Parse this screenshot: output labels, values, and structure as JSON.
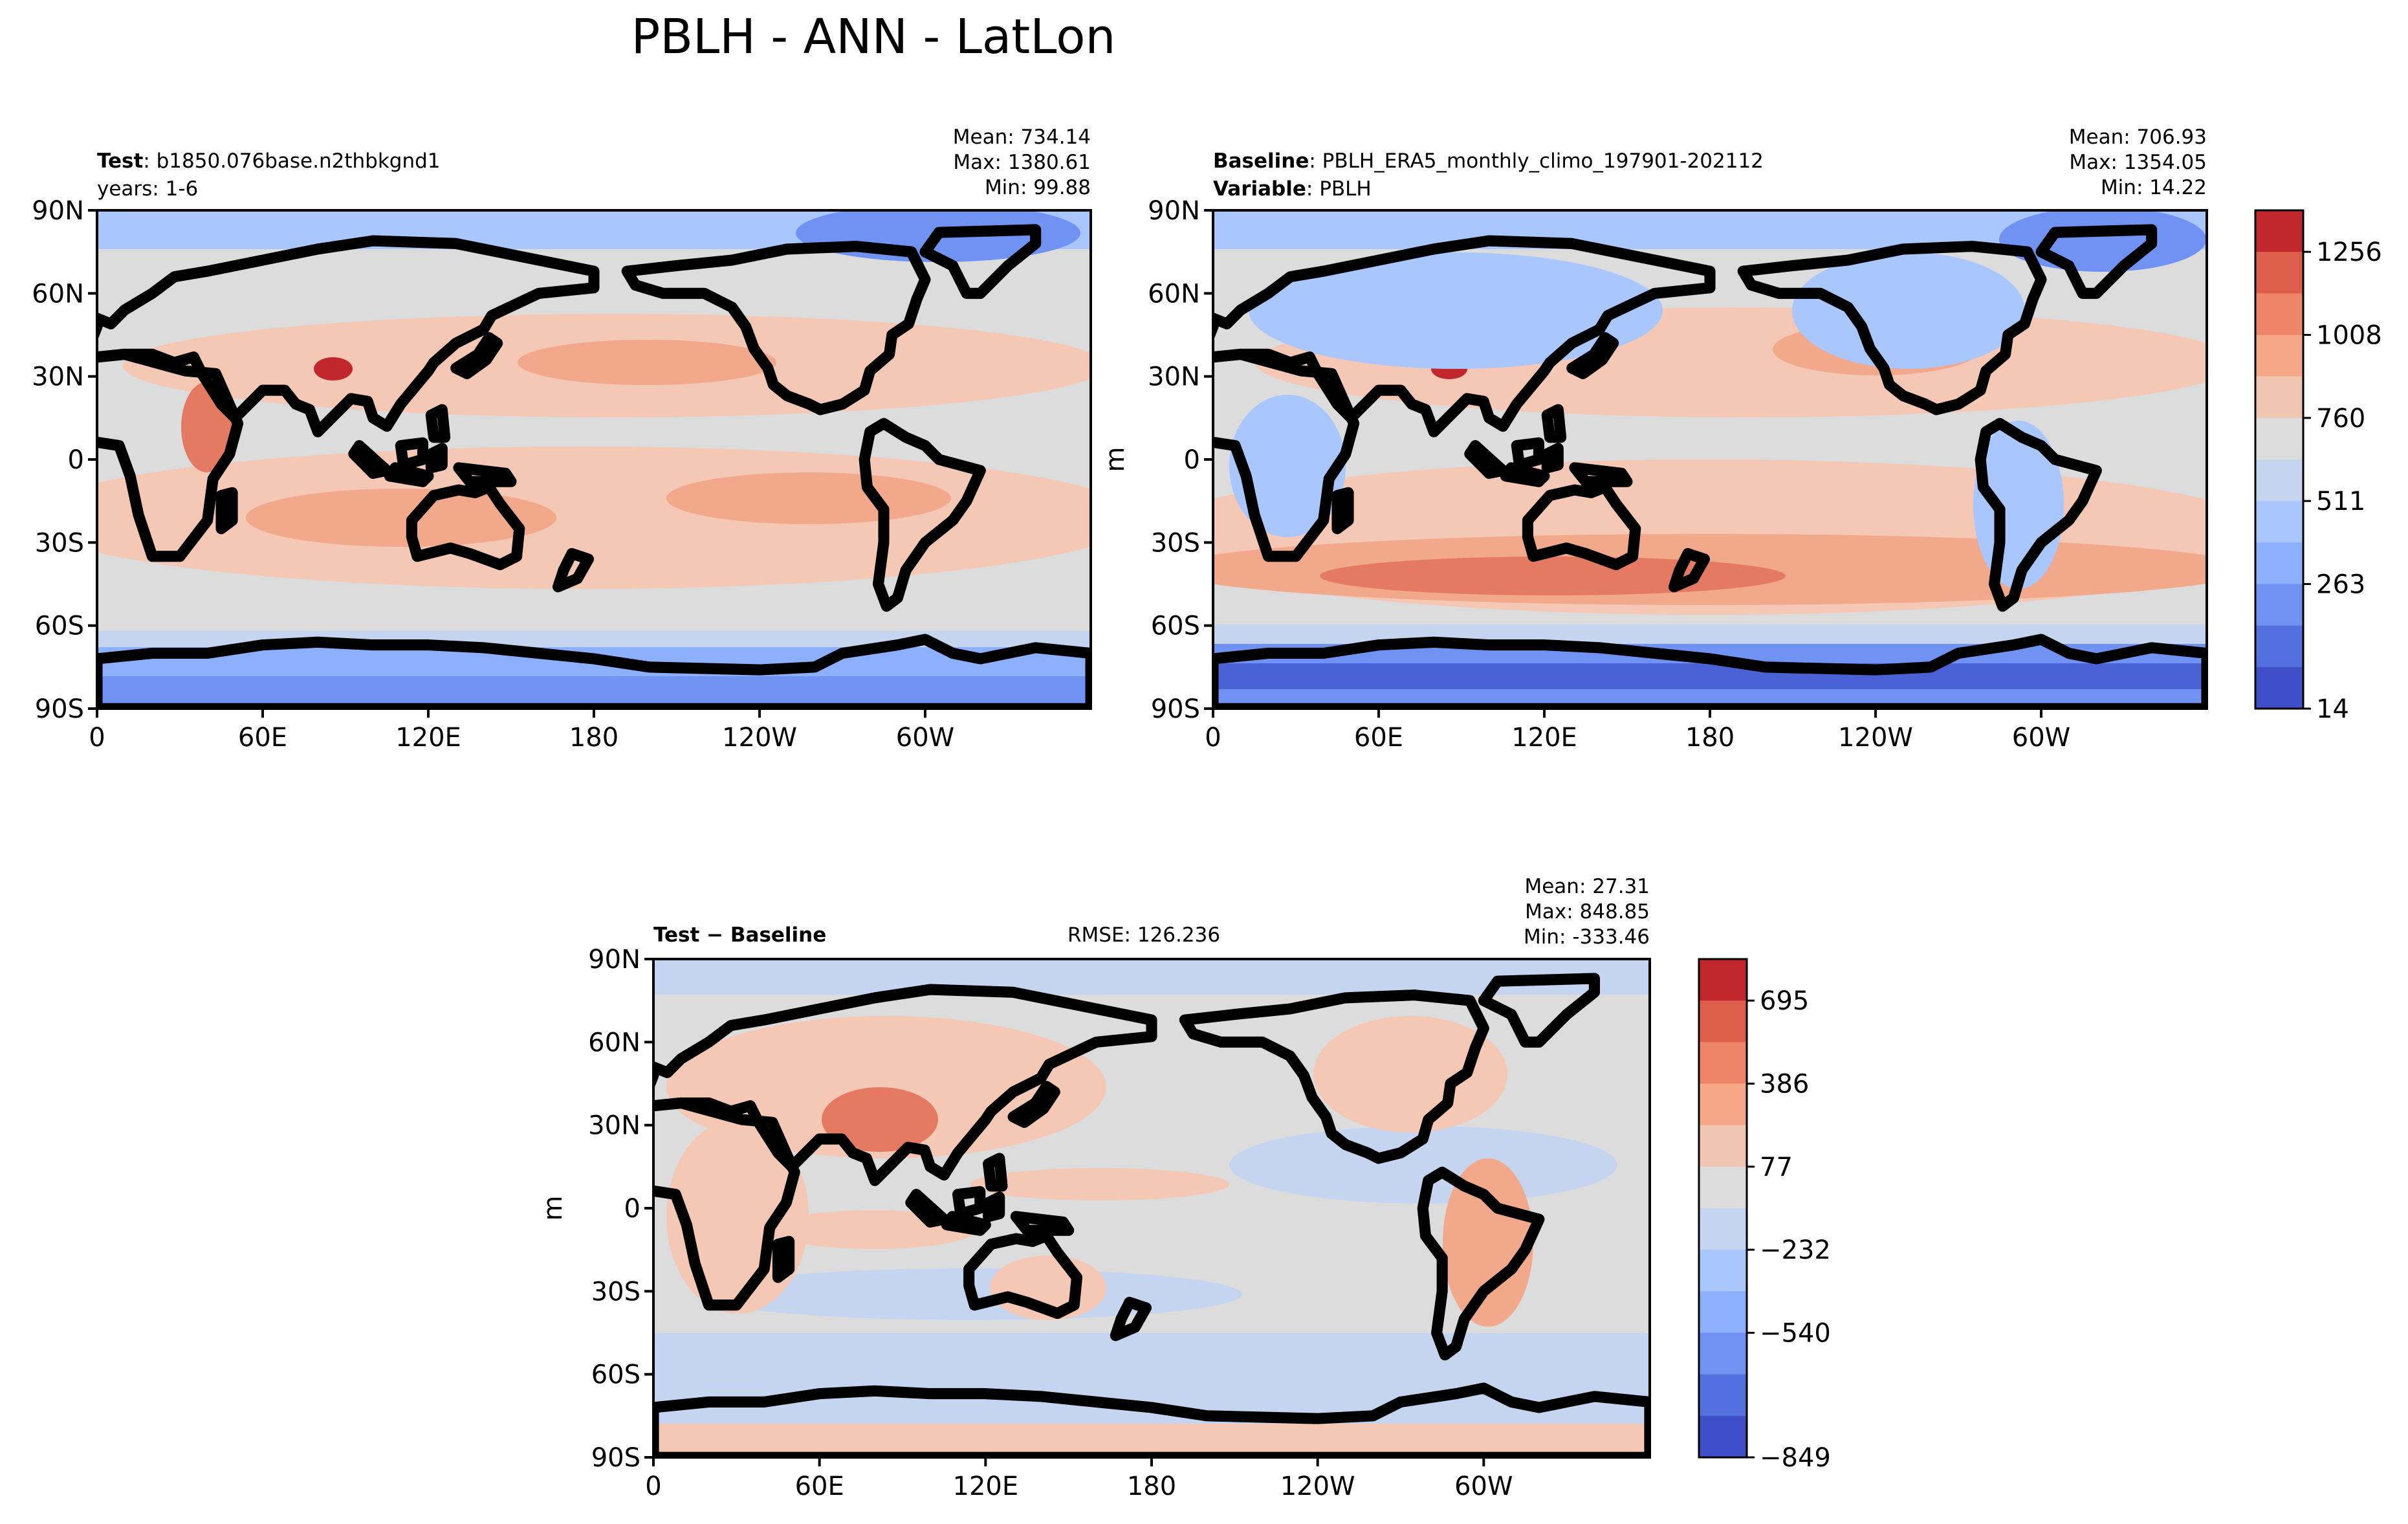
{
  "figure": {
    "title": "PBLH - ANN - LatLon"
  },
  "axes": {
    "lat_ticks": [
      "90N",
      "60N",
      "30N",
      "0",
      "30S",
      "60S",
      "90S"
    ],
    "lon_ticks": [
      "0",
      "60E",
      "120E",
      "180",
      "120W",
      "60W"
    ],
    "units": "m"
  },
  "panels": {
    "test": {
      "label_bold": "Test",
      "label_rest": ": b1850.076base.n2thbkgnd1",
      "line2": "years: 1-6",
      "mean": "Mean: 734.14",
      "max": "Max: 1380.61",
      "min": "Min: 99.88"
    },
    "baseline": {
      "label_bold": "Baseline",
      "label_rest": ": PBLH_ERA5_monthly_climo_197901-202112",
      "line2_bold": "Variable",
      "line2_rest": ": PBLH",
      "mean": "Mean: 706.93",
      "max": "Max: 1354.05",
      "min": "Min: 14.22"
    },
    "diff": {
      "label_a": "Test",
      "label_op": " − ",
      "label_b": "Baseline",
      "rmse": "RMSE: 126.236",
      "mean": "Mean: 27.31",
      "max": "Max: 848.85",
      "min": "Min: -333.46"
    }
  },
  "colorbars": {
    "main": {
      "ticks": [
        "1256",
        "1008",
        "760",
        "511",
        "263",
        "14"
      ],
      "colors": [
        "#c1272d",
        "#dd5f4b",
        "#ee8468",
        "#f6a788",
        "#f0c6b2",
        "#dcdcdc",
        "#c5d5ef",
        "#a9c6fd",
        "#8caffe",
        "#6f92f3",
        "#5470de",
        "#3f4fc9"
      ]
    },
    "diff": {
      "ticks": [
        "695",
        "386",
        "77",
        "−232",
        "−540",
        "−849"
      ],
      "colors": [
        "#c1272d",
        "#dd5f4b",
        "#ee8468",
        "#f6a788",
        "#f0c6b2",
        "#dcdcdc",
        "#c5d5ef",
        "#a9c6fd",
        "#8caffe",
        "#6f92f3",
        "#5470de",
        "#3f4fc9"
      ]
    }
  },
  "map_colors": {
    "neutral": "#dcdcdc",
    "warm_light": "#f4c8b4",
    "warm_mid": "#f2a88a",
    "warm_strong": "#e57a62",
    "warm_max": "#c1272d",
    "cool_light": "#c5d5ef",
    "cool_mid": "#a9c6fd",
    "cool_strong": "#6f92f3",
    "cool_max": "#4a62d6"
  }
}
